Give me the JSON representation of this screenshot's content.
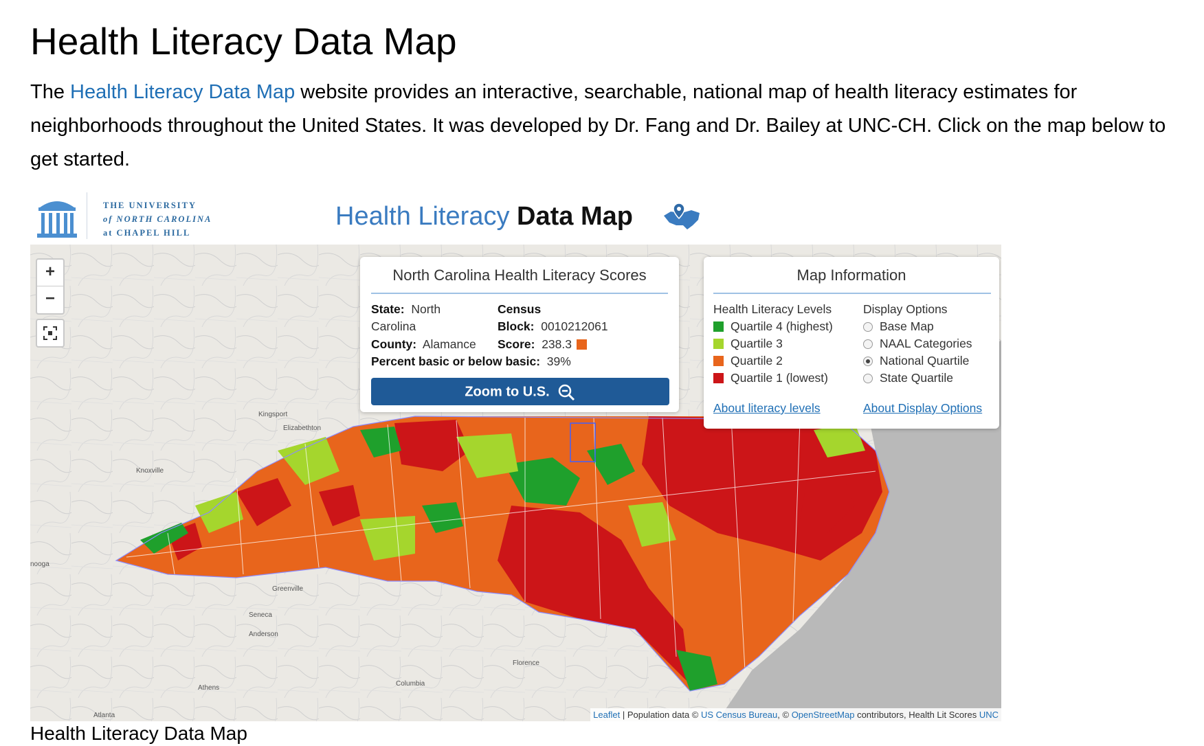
{
  "page": {
    "title": "Health Literacy Data Map",
    "intro_prefix": "The ",
    "intro_link": "Health Literacy Data Map",
    "intro_suffix": " website provides an interactive, searchable, national map of health literacy estimates for neighborhoods throughout the United States. It was developed by Dr. Fang and Dr. Bailey at UNC-CH. Click on the map below to get started.",
    "caption": "Health Literacy Data Map"
  },
  "header": {
    "unc_line1": "THE UNIVERSITY",
    "unc_line2": "of NORTH CAROLINA",
    "unc_line3": "at CHAPEL HILL",
    "app_title_part1": "Health Literacy ",
    "app_title_part2": "Data Map"
  },
  "controls": {
    "zoom_in": "+",
    "zoom_out": "−"
  },
  "score_panel": {
    "title": "North Carolina Health Literacy Scores",
    "state_label": "State:",
    "state_value_line1": "North",
    "state_value_line2": "Carolina",
    "county_label": "County:",
    "county_value": "Alamance",
    "census_label": "Census",
    "block_label": "Block:",
    "block_value": "0010212061",
    "score_label": "Score:",
    "score_value": "238.3",
    "percent_label": "Percent basic or below basic:",
    "percent_value": "39%",
    "zoom_button": "Zoom to U.S."
  },
  "info_panel": {
    "title": "Map Information",
    "levels_heading": "Health Literacy Levels",
    "levels": [
      {
        "label": "Quartile 4 (highest)",
        "color": "#1fa02c"
      },
      {
        "label": "Quartile 3",
        "color": "#a5d62d"
      },
      {
        "label": "Quartile 2",
        "color": "#e8651c"
      },
      {
        "label": "Quartile 1 (lowest)",
        "color": "#cc1518"
      }
    ],
    "display_heading": "Display Options",
    "display_options": [
      {
        "label": "Base Map",
        "checked": false
      },
      {
        "label": "NAAL Categories",
        "checked": false
      },
      {
        "label": "National Quartile",
        "checked": true
      },
      {
        "label": "State Quartile",
        "checked": false
      }
    ],
    "about_levels_link": "About literacy levels",
    "about_display_link": "About Display Options"
  },
  "map_labels": {
    "kingsport": "Kingsport",
    "elizabethton": "Elizabethton",
    "knoxville": "Knoxville",
    "nooga": "nooga",
    "greenville": "Greenville",
    "seneca": "Seneca",
    "anderson": "Anderson",
    "athens": "Athens",
    "columbia": "Columbia",
    "florence": "Florence",
    "atlanta": "Atlanta"
  },
  "attribution": {
    "leaflet": "Leaflet",
    "sep1": " | Population data © ",
    "census": "US Census Bureau",
    "sep2": ", © ",
    "osm": "OpenStreetMap",
    "sep3": " contributors, Health Lit Scores ",
    "unc": "UNC"
  },
  "colors": {
    "q4": "#1fa02c",
    "q3": "#a5d62d",
    "q2": "#e8651c",
    "q1": "#cc1518",
    "ocean": "#b9b9b9",
    "button_blue": "#1f5a97"
  }
}
